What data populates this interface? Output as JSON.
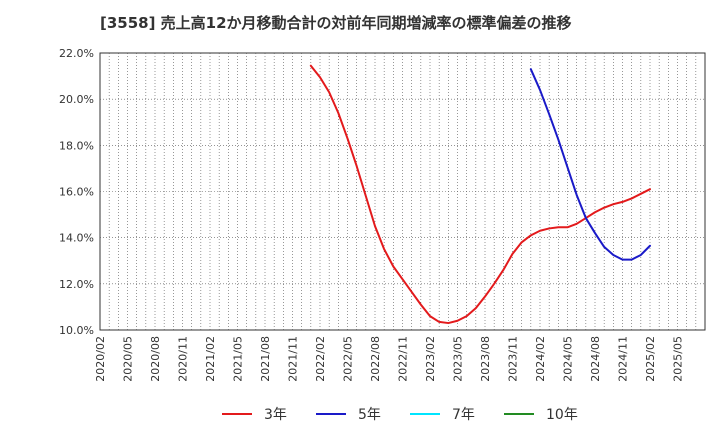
{
  "chart_data": {
    "type": "line",
    "title": "[3558]  売上高12か月移動合計の対前年同期増減率の標準偏差の推移",
    "xlabel": "",
    "ylabel": "",
    "ylim": [
      10.0,
      22.0
    ],
    "y_ticks": [
      "10.0%",
      "12.0%",
      "14.0%",
      "16.0%",
      "18.0%",
      "20.0%",
      "22.0%"
    ],
    "y_tick_values": [
      10,
      12,
      14,
      16,
      18,
      20,
      22
    ],
    "x_ticks": [
      "2020/02",
      "2020/05",
      "2020/08",
      "2020/11",
      "2021/02",
      "2021/05",
      "2021/08",
      "2021/11",
      "2022/02",
      "2022/05",
      "2022/08",
      "2022/11",
      "2023/02",
      "2023/05",
      "2023/08",
      "2023/11",
      "2024/02",
      "2024/05",
      "2024/08",
      "2024/11",
      "2025/02",
      "2025/05"
    ],
    "grid": true,
    "legend_position": "bottom",
    "series": [
      {
        "name": "3年",
        "color": "#e31a1c",
        "x": [
          "2022/01",
          "2022/02",
          "2022/03",
          "2022/04",
          "2022/05",
          "2022/06",
          "2022/07",
          "2022/08",
          "2022/09",
          "2022/10",
          "2022/11",
          "2022/12",
          "2023/01",
          "2023/02",
          "2023/03",
          "2023/04",
          "2023/05",
          "2023/06",
          "2023/07",
          "2023/08",
          "2023/09",
          "2023/10",
          "2023/11",
          "2023/12",
          "2024/01",
          "2024/02",
          "2024/03",
          "2024/04",
          "2024/05",
          "2024/06",
          "2024/07",
          "2024/08",
          "2024/09",
          "2024/10",
          "2024/11",
          "2024/12",
          "2025/01",
          "2025/02"
        ],
        "values": [
          21.45,
          20.95,
          20.3,
          19.4,
          18.3,
          17.1,
          15.8,
          14.5,
          13.5,
          12.75,
          12.2,
          11.65,
          11.1,
          10.6,
          10.35,
          10.3,
          10.4,
          10.6,
          10.95,
          11.45,
          12.0,
          12.6,
          13.3,
          13.8,
          14.1,
          14.3,
          14.4,
          14.45,
          14.45,
          14.6,
          14.85,
          15.1,
          15.3,
          15.45,
          15.55,
          15.7,
          15.9,
          16.1
        ]
      },
      {
        "name": "5年",
        "color": "#1a1ac8",
        "x": [
          "2024/01",
          "2024/02",
          "2024/03",
          "2024/04",
          "2024/05",
          "2024/06",
          "2024/07",
          "2024/08",
          "2024/09",
          "2024/10",
          "2024/11",
          "2024/12",
          "2025/01",
          "2025/02"
        ],
        "values": [
          21.3,
          20.4,
          19.35,
          18.25,
          17.05,
          15.85,
          14.85,
          14.2,
          13.6,
          13.25,
          13.05,
          13.05,
          13.25,
          13.65
        ]
      },
      {
        "name": "7年",
        "color": "#00e5ff",
        "x": [],
        "values": []
      },
      {
        "name": "10年",
        "color": "#228b22",
        "x": [],
        "values": []
      }
    ]
  }
}
